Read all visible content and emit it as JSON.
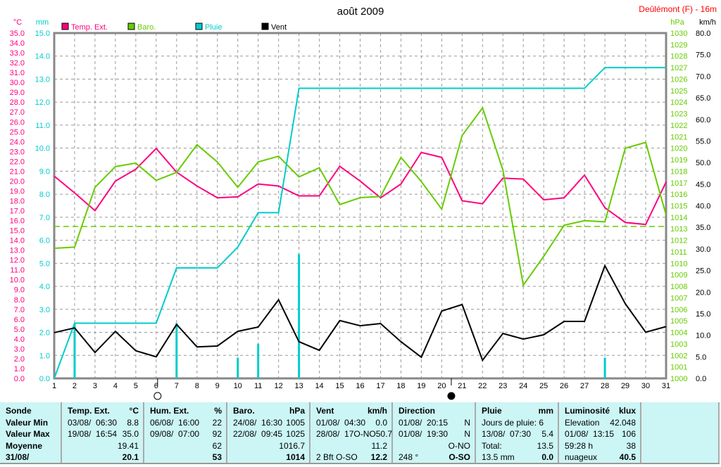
{
  "title": "août 2009",
  "station": "Deûlémont (F) - 16m",
  "colors": {
    "temp": "#ff0080",
    "baro": "#66cc00",
    "rain": "#00cccc",
    "wind": "#000000",
    "grid": "#999999",
    "table_bg": "#ccf5f5"
  },
  "chart_data": {
    "type": "line",
    "title": "août 2009",
    "x": [
      1,
      2,
      3,
      4,
      5,
      6,
      7,
      8,
      9,
      10,
      11,
      12,
      13,
      14,
      15,
      16,
      17,
      18,
      19,
      20,
      21,
      22,
      23,
      24,
      25,
      26,
      27,
      28,
      29,
      30,
      31
    ],
    "axes": {
      "temp": {
        "unit": "°C",
        "range": [
          0,
          35
        ],
        "step": 1
      },
      "rain": {
        "unit": "mm",
        "range": [
          0,
          15
        ],
        "step": 1
      },
      "baro": {
        "unit": "hPa",
        "range": [
          1000,
          1030
        ],
        "step": 1
      },
      "wind": {
        "unit": "km/h",
        "range": [
          0,
          80
        ],
        "step": 5
      }
    },
    "series": [
      {
        "name": "Temp. Ext.",
        "axis": "temp",
        "values": [
          20.5,
          18.8,
          17.0,
          20.0,
          21.2,
          23.3,
          20.9,
          19.5,
          18.3,
          18.4,
          19.7,
          19.5,
          18.5,
          18.5,
          21.5,
          20.0,
          18.3,
          19.7,
          22.9,
          22.4,
          18.0,
          17.7,
          20.3,
          20.2,
          18.1,
          18.3,
          20.6,
          17.3,
          15.8,
          15.6,
          19.9
        ]
      },
      {
        "name": "Baro.",
        "axis": "baro",
        "values": [
          1011.3,
          1011.4,
          1016.6,
          1018.4,
          1018.7,
          1017.2,
          1017.9,
          1020.3,
          1018.8,
          1016.6,
          1018.8,
          1019.3,
          1017.5,
          1018.3,
          1015.1,
          1015.7,
          1015.8,
          1019.2,
          1017.1,
          1014.7,
          1021.1,
          1023.5,
          1018.1,
          1008.1,
          1010.6,
          1013.3,
          1013.7,
          1013.6,
          1020.0,
          1020.5,
          1014.2
        ],
        "average_line": 1013.2
      },
      {
        "name": "Pluie",
        "axis": "rain",
        "values": [
          0,
          2.4,
          2.4,
          2.4,
          2.4,
          2.4,
          4.8,
          4.8,
          4.8,
          5.7,
          7.2,
          7.2,
          12.6,
          12.6,
          12.6,
          12.6,
          12.6,
          12.6,
          12.6,
          12.6,
          12.6,
          12.6,
          12.6,
          12.6,
          12.6,
          12.6,
          12.6,
          13.5,
          13.5,
          13.5,
          13.5
        ],
        "daily": [
          0,
          2.4,
          0,
          0,
          0,
          0,
          2.4,
          0,
          0,
          0.9,
          1.5,
          0,
          5.4,
          0,
          0,
          0,
          0,
          0,
          0,
          0,
          0,
          0,
          0,
          0,
          0,
          0,
          0,
          0.9,
          0,
          0,
          0
        ]
      },
      {
        "name": "Vent",
        "axis": "wind",
        "values": [
          10.6,
          11.7,
          6.0,
          10.9,
          6.4,
          5.0,
          12.5,
          7.3,
          7.5,
          10.9,
          11.9,
          18.2,
          8.5,
          6.5,
          13.4,
          12.2,
          12.7,
          8.5,
          4.9,
          15.6,
          17.1,
          4.2,
          10.4,
          9.1,
          10.1,
          13.2,
          13.2,
          26.1,
          17.3,
          10.7,
          12.0
        ]
      }
    ],
    "moon_phases": [
      {
        "day": 6.0,
        "phase": "full"
      },
      {
        "day": 20.4,
        "phase": "new"
      }
    ],
    "legend": "top"
  },
  "table": [
    {
      "rows": [
        [
          "Sonde",
          ""
        ],
        [
          "Valeur Min",
          ""
        ],
        [
          "Valeur Max",
          ""
        ],
        [
          "Moyenne",
          ""
        ],
        [
          "31/08/",
          ""
        ]
      ],
      "bold": true
    },
    {
      "rows": [
        [
          "Temp. Ext.",
          "°C"
        ],
        [
          "03/08/  06:30",
          "8.8"
        ],
        [
          "19/08/  16:54",
          "35.0"
        ],
        [
          "",
          "19.41"
        ],
        [
          "",
          "20.1"
        ]
      ]
    },
    {
      "rows": [
        [
          "Hum. Ext.",
          "%"
        ],
        [
          "06/08/  16:00",
          "22"
        ],
        [
          "09/08/  07:00",
          "92"
        ],
        [
          "",
          "62"
        ],
        [
          "",
          "53"
        ]
      ]
    },
    {
      "rows": [
        [
          "Baro.",
          "hPa"
        ],
        [
          "24/08/  16:30",
          "1005"
        ],
        [
          "22/08/  09:45",
          "1025"
        ],
        [
          "",
          "1016.7"
        ],
        [
          "",
          "1014"
        ]
      ]
    },
    {
      "rows": [
        [
          "Vent",
          "km/h"
        ],
        [
          "01/08/  04:30",
          "0.0"
        ],
        [
          "28/08/  17O-NO",
          "50.7"
        ],
        [
          "",
          "11.2"
        ],
        [
          "2 Bft O-SO",
          "12.2"
        ]
      ]
    },
    {
      "rows": [
        [
          "Direction",
          ""
        ],
        [
          "01/08/  20:15",
          "N"
        ],
        [
          "01/08/  19:30",
          "N"
        ],
        [
          "",
          "O-NO"
        ],
        [
          "248 °",
          "O-SO"
        ]
      ]
    },
    {
      "rows": [
        [
          "Pluie",
          "mm"
        ],
        [
          "Jours de pluie: 6",
          ""
        ],
        [
          "13/08/  07:30",
          "5.4"
        ],
        [
          "Total:",
          "13.5"
        ],
        [
          "13.5 mm",
          "0.0"
        ]
      ]
    },
    {
      "rows": [
        [
          "Luminosité",
          "klux"
        ],
        [
          "Elevation",
          "42.048"
        ],
        [
          "01/08/  13:15",
          "106"
        ],
        [
          "59:28 h",
          "38"
        ],
        [
          "nuageux",
          "40.5"
        ]
      ]
    },
    {
      "rows": []
    }
  ]
}
